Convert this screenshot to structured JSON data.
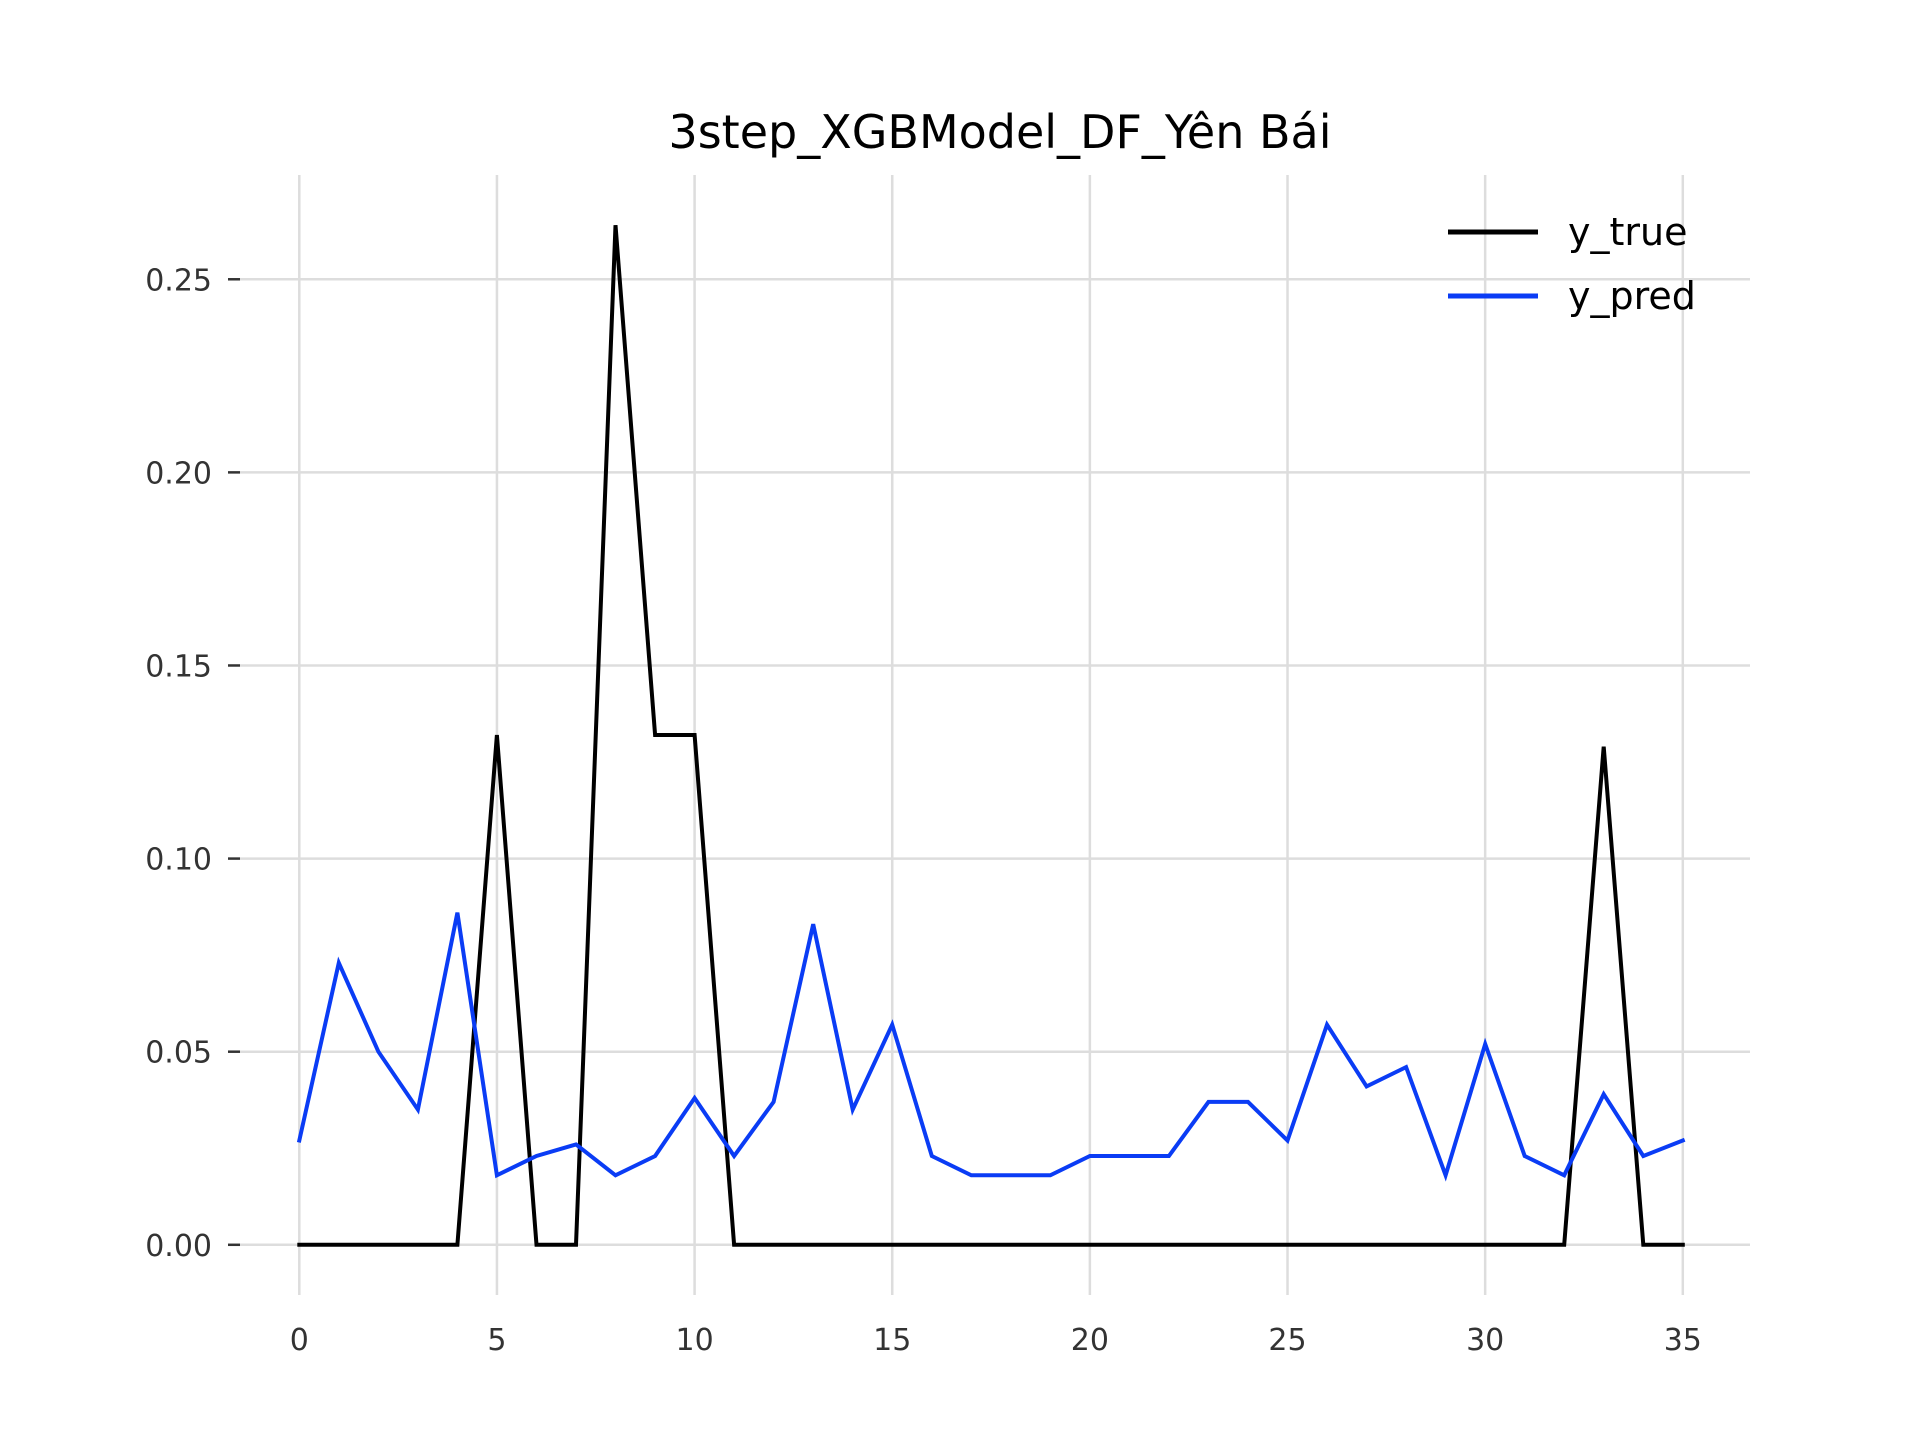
{
  "chart_data": {
    "type": "line",
    "title": "3step_XGBModel_DF_Yên Bái",
    "xlabel": "",
    "ylabel": "",
    "x": [
      0,
      1,
      2,
      3,
      4,
      5,
      6,
      7,
      8,
      9,
      10,
      11,
      12,
      13,
      14,
      15,
      16,
      17,
      18,
      19,
      20,
      21,
      22,
      23,
      24,
      25,
      26,
      27,
      28,
      29,
      30,
      31,
      32,
      33,
      34,
      35
    ],
    "xlim": [
      -1.5,
      36.7
    ],
    "ylim": [
      -0.013,
      0.277
    ],
    "xticks": [
      0,
      5,
      10,
      15,
      20,
      25,
      30,
      35
    ],
    "xtick_labels": [
      "0",
      "5",
      "10",
      "15",
      "20",
      "25",
      "30",
      "35"
    ],
    "yticks": [
      0.0,
      0.05,
      0.1,
      0.15,
      0.2,
      0.25
    ],
    "ytick_labels": [
      "0.00",
      "0.05",
      "0.10",
      "0.15",
      "0.20",
      "0.25"
    ],
    "grid": true,
    "legend_position": "top-right",
    "series": [
      {
        "name": "y_true",
        "color": "#000000",
        "values": [
          0,
          0,
          0,
          0,
          0,
          0.132,
          0,
          0,
          0.264,
          0.132,
          0.132,
          0,
          0,
          0,
          0,
          0,
          0,
          0,
          0,
          0,
          0,
          0,
          0,
          0,
          0,
          0,
          0,
          0,
          0,
          0,
          0,
          0,
          0,
          0.129,
          0,
          0
        ]
      },
      {
        "name": "y_pred",
        "color": "#0a3cf5",
        "values": [
          0.027,
          0.073,
          0.05,
          0.035,
          0.086,
          0.018,
          0.023,
          0.026,
          0.018,
          0.023,
          0.038,
          0.023,
          0.037,
          0.083,
          0.035,
          0.057,
          0.023,
          0.018,
          0.018,
          0.018,
          0.023,
          0.023,
          0.023,
          0.037,
          0.037,
          0.027,
          0.057,
          0.041,
          0.046,
          0.018,
          0.052,
          0.023,
          0.018,
          0.039,
          0.023,
          0.027
        ]
      }
    ]
  }
}
